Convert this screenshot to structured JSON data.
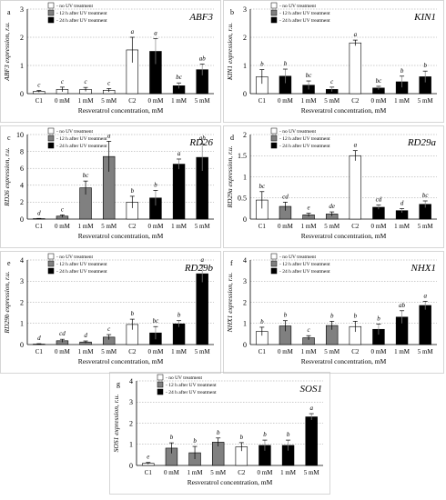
{
  "legend": [
    "- no UV treatment",
    "- 12 h after UV treatment",
    "- 24 h after UV treatment"
  ],
  "xlabel": "Resveratrol concentration, mM",
  "unit_suffix": " expression, r.u.",
  "colors": {
    "no_uv": "#ffffff",
    "h12": "#808080",
    "h24": "#000000"
  },
  "chart_data": [
    {
      "panel": "a",
      "title": "ABF3",
      "type": "bar",
      "ylim": [
        0,
        3
      ],
      "yticks": [
        0,
        1,
        2,
        3
      ],
      "categories": [
        "C1",
        "0 mM",
        "1 mM",
        "5 mM",
        "C2",
        "0 mM",
        "1 mM",
        "5 mM"
      ],
      "groups": [
        "no_uv",
        "no_uv",
        "no_uv",
        "no_uv",
        "no_uv",
        "h24",
        "h24",
        "h24"
      ],
      "values": [
        0.08,
        0.15,
        0.15,
        0.12,
        1.55,
        1.5,
        0.28,
        0.85
      ],
      "errors": [
        0.03,
        0.08,
        0.07,
        0.06,
        0.45,
        0.45,
        0.1,
        0.2
      ],
      "letters": [
        "c",
        "c",
        "c",
        "c",
        "a",
        "a",
        "bc",
        "ab"
      ]
    },
    {
      "panel": "b",
      "title": "KIN1",
      "type": "bar",
      "ylim": [
        0,
        3
      ],
      "yticks": [
        0,
        1,
        2,
        3
      ],
      "categories": [
        "C1",
        "0 mM",
        "1 mM",
        "5 mM",
        "C2",
        "0 mM",
        "1 mM",
        "5 mM"
      ],
      "groups": [
        "no_uv",
        "h24",
        "h24",
        "h24",
        "no_uv",
        "h24",
        "h24",
        "h24"
      ],
      "values": [
        0.6,
        0.62,
        0.3,
        0.15,
        1.8,
        0.2,
        0.42,
        0.6
      ],
      "errors": [
        0.25,
        0.25,
        0.15,
        0.08,
        0.1,
        0.06,
        0.2,
        0.2
      ],
      "letters": [
        "b",
        "b",
        "bc",
        "c",
        "a",
        "bc",
        "b",
        "b"
      ]
    },
    {
      "panel": "c",
      "title": "RD26",
      "type": "bar",
      "ylim": [
        0,
        10
      ],
      "yticks": [
        0,
        2,
        4,
        6,
        8,
        10
      ],
      "categories": [
        "C1",
        "0 mM",
        "1 mM",
        "5 mM",
        "C2",
        "0 mM",
        "1 mM",
        "5 mM"
      ],
      "groups": [
        "no_uv",
        "h12",
        "h12",
        "h12",
        "no_uv",
        "h24",
        "h24",
        "h24"
      ],
      "values": [
        0.05,
        0.35,
        3.7,
        7.4,
        2.0,
        2.5,
        6.5,
        7.3
      ],
      "errors": [
        0.03,
        0.15,
        0.8,
        1.8,
        0.7,
        0.9,
        0.6,
        1.6
      ],
      "letters": [
        "d",
        "c",
        "bc",
        "a",
        "b",
        "b",
        "a",
        "ab"
      ]
    },
    {
      "panel": "d",
      "title": "RD29a",
      "type": "bar",
      "ylim": [
        0,
        2
      ],
      "yticks": [
        0,
        0.5,
        1,
        1.5,
        2
      ],
      "categories": [
        "C1",
        "0 mM",
        "1 mM",
        "5 mM",
        "C2",
        "0 mM",
        "1 mM",
        "5 mM"
      ],
      "groups": [
        "no_uv",
        "h12",
        "h12",
        "h12",
        "no_uv",
        "h24",
        "h24",
        "h24"
      ],
      "values": [
        0.45,
        0.3,
        0.1,
        0.12,
        1.5,
        0.28,
        0.2,
        0.35
      ],
      "errors": [
        0.2,
        0.1,
        0.04,
        0.05,
        0.12,
        0.05,
        0.05,
        0.08
      ],
      "letters": [
        "bc",
        "cd",
        "e",
        "de",
        "a",
        "cd",
        "d",
        "bc"
      ]
    },
    {
      "panel": "e",
      "title": "RD29b",
      "type": "bar",
      "ylim": [
        0,
        4
      ],
      "yticks": [
        0,
        1,
        2,
        3,
        4
      ],
      "categories": [
        "C1",
        "0 mM",
        "1 mM",
        "5 mM",
        "C2",
        "0 mM",
        "1 mM",
        "5 mM"
      ],
      "groups": [
        "no_uv",
        "h12",
        "h12",
        "h12",
        "no_uv",
        "h24",
        "h24",
        "h24"
      ],
      "values": [
        0.02,
        0.18,
        0.12,
        0.35,
        0.95,
        0.55,
        0.98,
        3.35
      ],
      "errors": [
        0.02,
        0.07,
        0.05,
        0.12,
        0.25,
        0.3,
        0.15,
        0.4
      ],
      "letters": [
        "d",
        "cd",
        "d",
        "c",
        "b",
        "bc",
        "b",
        "a"
      ]
    },
    {
      "panel": "f",
      "title": "NHX1",
      "type": "bar",
      "ylim": [
        0,
        4
      ],
      "yticks": [
        0,
        1,
        2,
        3,
        4
      ],
      "categories": [
        "C1",
        "0 mM",
        "1 mM",
        "5 mM",
        "C2",
        "0 mM",
        "1 mM",
        "5 mM"
      ],
      "groups": [
        "no_uv",
        "h12",
        "h12",
        "h12",
        "no_uv",
        "h24",
        "h24",
        "h24"
      ],
      "values": [
        0.62,
        0.88,
        0.32,
        0.9,
        0.85,
        0.72,
        1.3,
        1.85
      ],
      "errors": [
        0.2,
        0.25,
        0.1,
        0.2,
        0.25,
        0.25,
        0.3,
        0.2
      ],
      "letters": [
        "b",
        "b",
        "c",
        "b",
        "b",
        "b",
        "ab",
        "a"
      ]
    },
    {
      "panel": "g",
      "title": "SOS1",
      "type": "bar",
      "ylim": [
        0,
        4
      ],
      "yticks": [
        0,
        1,
        2,
        3,
        4
      ],
      "categories": [
        "C1",
        "0 mM",
        "1 mM",
        "5 mM",
        "C2",
        "0 mM",
        "1 mM",
        "5 mM"
      ],
      "groups": [
        "no_uv",
        "h12",
        "h12",
        "h12",
        "no_uv",
        "h24",
        "h24",
        "h24"
      ],
      "values": [
        0.1,
        0.82,
        0.6,
        1.1,
        0.88,
        0.95,
        0.95,
        2.3
      ],
      "errors": [
        0.04,
        0.25,
        0.3,
        0.2,
        0.2,
        0.25,
        0.25,
        0.15
      ],
      "letters": [
        "e",
        "b",
        "b",
        "b",
        "b",
        "b",
        "b",
        "a"
      ]
    }
  ]
}
